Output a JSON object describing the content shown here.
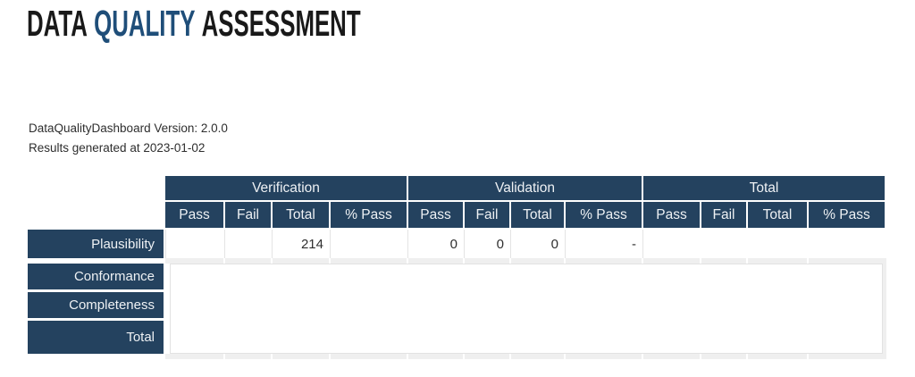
{
  "title": {
    "words": [
      {
        "text": "DATA",
        "color": "#191919"
      },
      {
        "text": "QUALITY",
        "color": "#1f4e79"
      },
      {
        "text": "ASSESSMENT",
        "color": "#191919"
      }
    ]
  },
  "meta": {
    "version_line": "DataQualityDashboard Version: 2.0.0",
    "generated_line": "Results generated at 2023-01-02"
  },
  "table": {
    "group_headers": [
      "Verification",
      "Validation",
      "Total"
    ],
    "sub_headers": [
      "Pass",
      "Fail",
      "Total",
      "% Pass"
    ],
    "row_labels": [
      "Plausibility",
      "Conformance",
      "Completeness",
      "Total"
    ],
    "plausibility_row": {
      "verification": {
        "pass": "",
        "fail": "",
        "total": "214",
        "pct_pass": ""
      },
      "validation": {
        "pass": "0",
        "fail": "0",
        "total": "0",
        "pct_pass": "-"
      },
      "total": {
        "pass": "",
        "fail": "",
        "total": "",
        "pct_pass": ""
      }
    }
  },
  "colors": {
    "header_bg": "#24425f",
    "title_accent": "#1f4e79",
    "title_dark": "#191919",
    "skeleton_gray": "#efefef",
    "cell_border": "#e4e4e4"
  }
}
